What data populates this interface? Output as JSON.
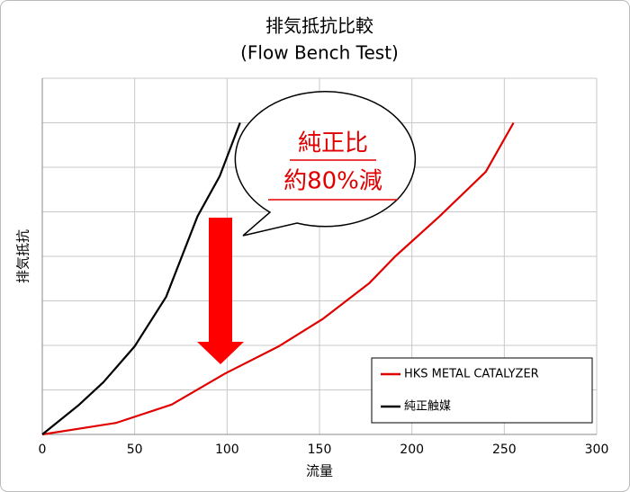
{
  "chart_data": {
    "type": "line",
    "title": [
      "排気抵抗比較",
      "(Flow Bench Test)"
    ],
    "xlabel": "流量",
    "ylabel": "排気抵抗",
    "annotation": [
      "純正比",
      "約80%減"
    ],
    "xlim": [
      0,
      300
    ],
    "xticks": [
      0,
      50,
      100,
      150,
      200,
      250,
      300
    ],
    "ylim": [
      0,
      8
    ],
    "yticks": [
      0,
      1,
      2,
      3,
      4,
      5,
      6,
      7,
      8
    ],
    "grid": true,
    "legend": "lower right",
    "series": [
      {
        "name": "HKS METAL CATALYZER",
        "color": "#e00000",
        "x": [
          0,
          40,
          70,
          99,
          128,
          152,
          177,
          191,
          215,
          240,
          255
        ],
        "values": [
          0,
          0.26,
          0.67,
          1.37,
          1.98,
          2.6,
          3.4,
          4.0,
          4.9,
          5.9,
          7.0
        ]
      },
      {
        "name": "純正触媒",
        "color": "#000000",
        "x": [
          0,
          20,
          33,
          50,
          67,
          84,
          96,
          107
        ],
        "values": [
          0,
          0.67,
          1.17,
          1.98,
          3.09,
          4.9,
          5.8,
          7.0
        ]
      }
    ]
  }
}
